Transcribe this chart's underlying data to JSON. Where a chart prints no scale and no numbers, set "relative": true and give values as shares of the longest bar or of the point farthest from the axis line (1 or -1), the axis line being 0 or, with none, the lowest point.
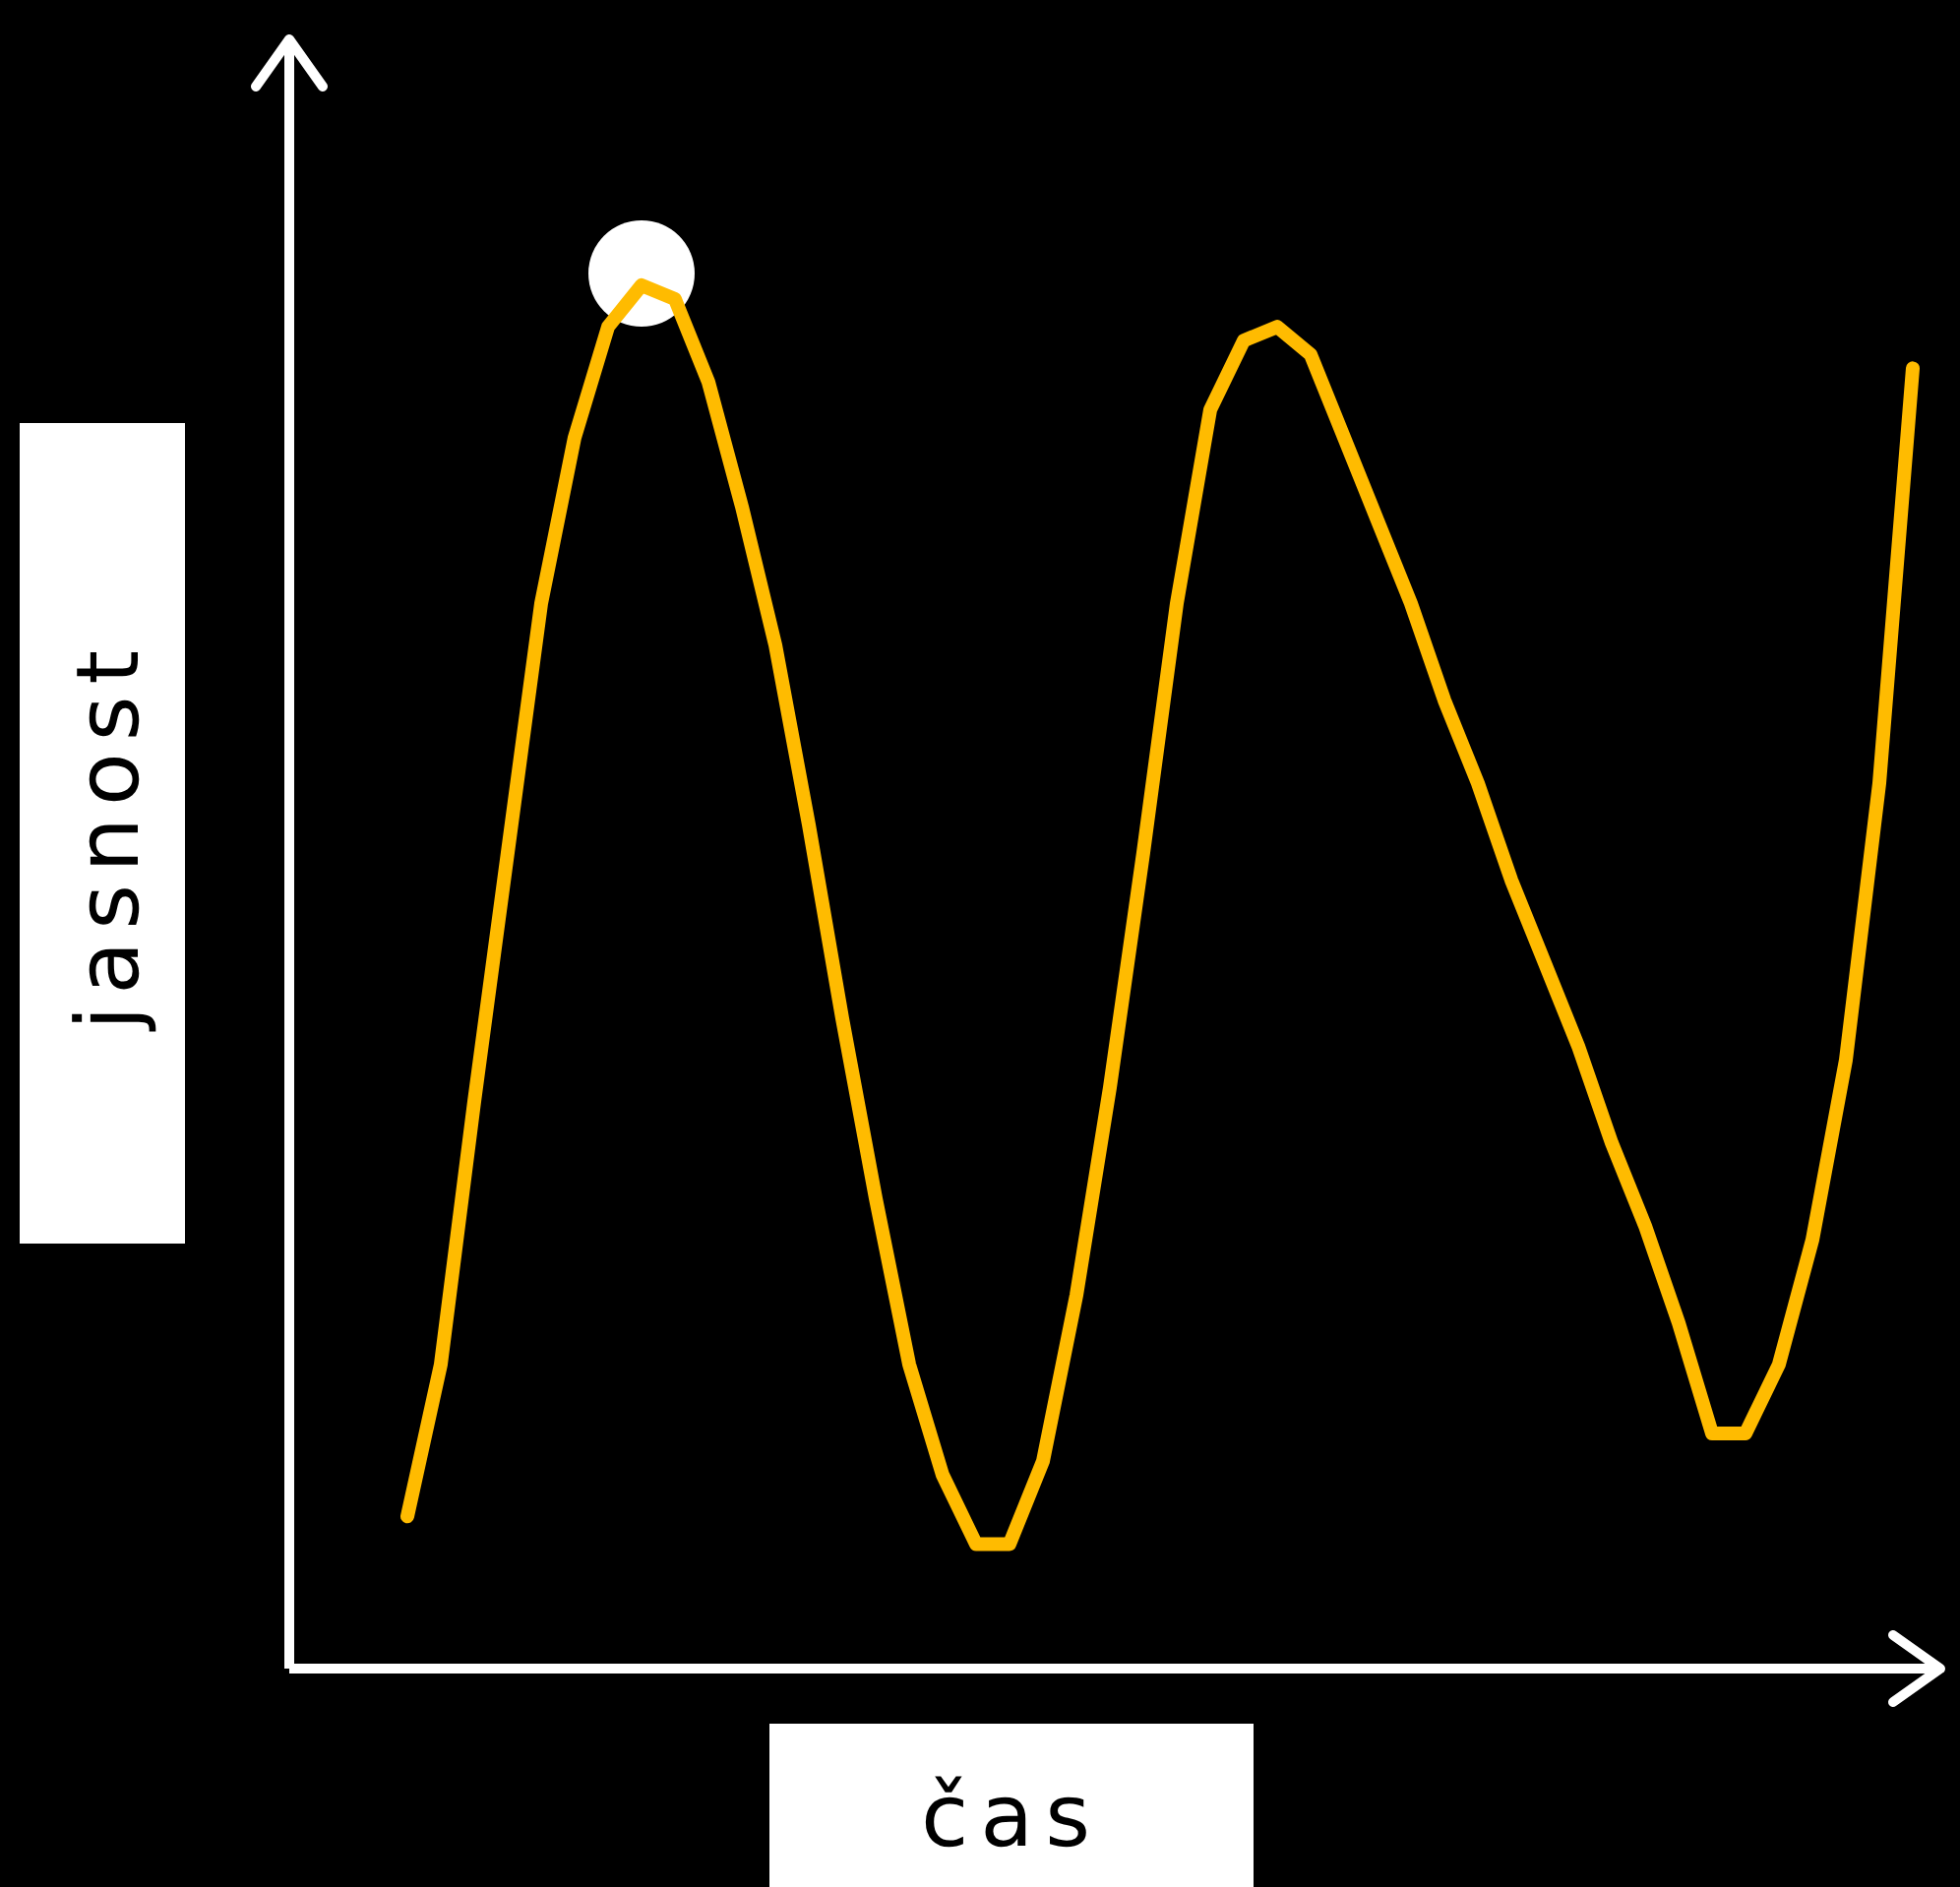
{
  "chart_data": {
    "type": "line",
    "relative": true,
    "xlabel": "čas",
    "ylabel": "jasnost",
    "grid": false,
    "tick_labels": false,
    "categories": [
      null,
      null,
      null,
      null,
      null,
      null,
      null,
      null,
      null,
      null,
      null,
      null,
      null,
      null,
      null,
      null,
      null,
      null,
      null,
      null,
      null,
      null,
      null,
      null,
      null,
      null,
      null,
      null,
      null,
      null,
      null,
      null,
      null,
      null,
      null,
      null,
      null,
      null,
      null,
      null,
      null,
      null,
      null,
      null,
      null,
      null
    ],
    "series": [
      {
        "color": "#ffbb00",
        "values": [
          0.11,
          0.22,
          0.41,
          0.59,
          0.77,
          0.89,
          0.97,
          1,
          0.99,
          0.93,
          0.84,
          0.74,
          0.61,
          0.47,
          0.34,
          0.22,
          0.14,
          0.09,
          0.09,
          0.15,
          0.27,
          0.42,
          0.59,
          0.77,
          0.91,
          0.96,
          0.97,
          0.95,
          0.89,
          0.83,
          0.77,
          0.7,
          0.64,
          0.57,
          0.51,
          0.45,
          0.38,
          0.32,
          0.25,
          0.17,
          0.17,
          0.22,
          0.31,
          0.44,
          0.64,
          0.94
        ]
      }
    ]
  }
}
